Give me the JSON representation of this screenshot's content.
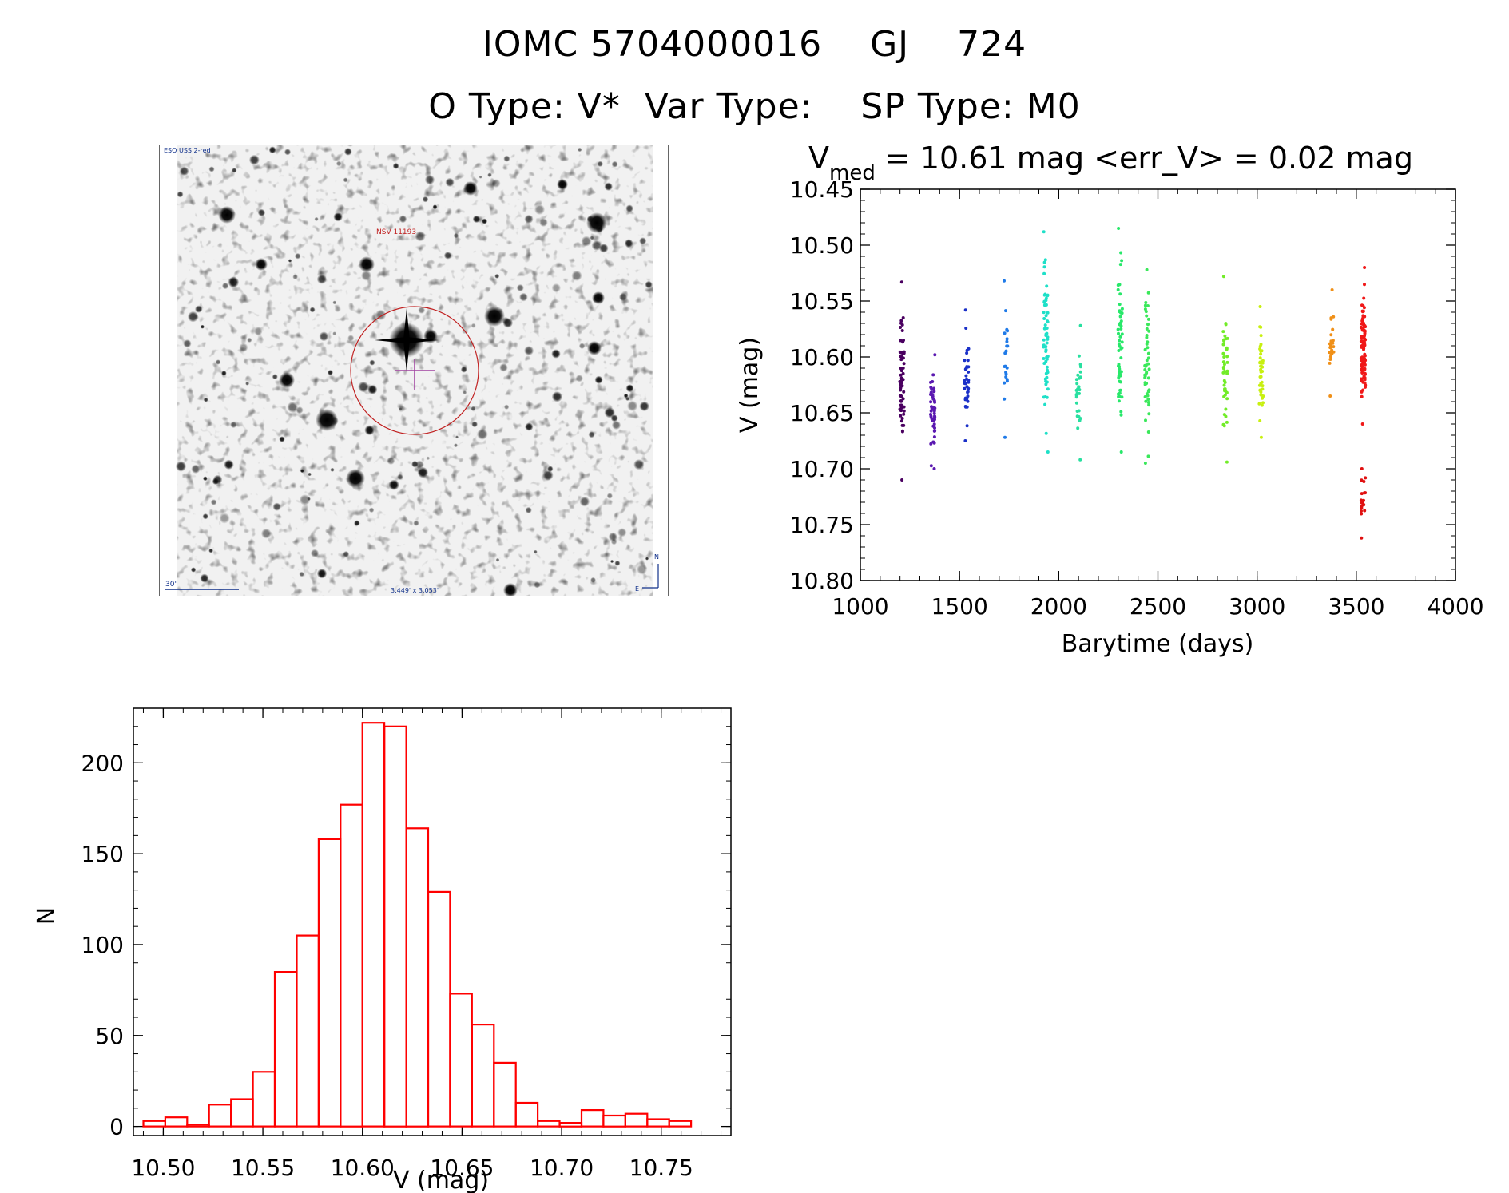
{
  "header": {
    "line1": "IOMC 5704000016    GJ    724",
    "line2": "O Type: V*  Var Type:    SP Type: M0"
  },
  "thumbnail": {
    "survey_label": "ESO USS 2-red",
    "target_label": "NSV 11193",
    "scale_label": "30\"",
    "fov_label": "3.449' x 3.053'",
    "north_label": "N",
    "east_label": "E"
  },
  "chart_data": [
    {
      "type": "scatter",
      "title": "V_med = 10.61 mag <err_V> = 0.02 mag",
      "title_parts": {
        "v": "V",
        "sub": "med",
        "rest": " = 10.61 mag <err_V> = 0.02 mag"
      },
      "xlabel": "Barytime (days)",
      "ylabel": "V (mag)",
      "xlim": [
        1000,
        4000
      ],
      "ylim": [
        10.8,
        10.45
      ],
      "xticks": [
        "1000",
        "1500",
        "2000",
        "2500",
        "3000",
        "3500",
        "4000"
      ],
      "yticks": [
        "10.45",
        "10.50",
        "10.55",
        "10.60",
        "10.65",
        "10.70",
        "10.75",
        "10.80"
      ],
      "groups": [
        {
          "x": 1210,
          "ymin": 10.533,
          "ymax": 10.71,
          "center": 10.61,
          "n": 60,
          "color": "#4a0060"
        },
        {
          "x": 1365,
          "ymin": 10.598,
          "ymax": 10.7,
          "center": 10.64,
          "n": 45,
          "color": "#5a18b0"
        },
        {
          "x": 1535,
          "ymin": 10.558,
          "ymax": 10.675,
          "center": 10.6,
          "n": 35,
          "color": "#1a30c8"
        },
        {
          "x": 1735,
          "ymin": 10.532,
          "ymax": 10.672,
          "center": 10.6,
          "n": 22,
          "color": "#1f7ae8"
        },
        {
          "x": 1935,
          "ymin": 10.488,
          "ymax": 10.685,
          "center": 10.61,
          "n": 60,
          "color": "#1ee0c8"
        },
        {
          "x": 2100,
          "ymin": 10.572,
          "ymax": 10.692,
          "center": 10.62,
          "n": 30,
          "color": "#28e0a0"
        },
        {
          "x": 2310,
          "ymin": 10.485,
          "ymax": 10.685,
          "center": 10.59,
          "n": 60,
          "color": "#28e86a"
        },
        {
          "x": 2445,
          "ymin": 10.522,
          "ymax": 10.695,
          "center": 10.62,
          "n": 50,
          "color": "#3ae85a"
        },
        {
          "x": 2840,
          "ymin": 10.528,
          "ymax": 10.694,
          "center": 10.62,
          "n": 45,
          "color": "#72ec28"
        },
        {
          "x": 3020,
          "ymin": 10.555,
          "ymax": 10.672,
          "center": 10.61,
          "n": 40,
          "color": "#c8f010"
        },
        {
          "x": 3375,
          "ymin": 10.54,
          "ymax": 10.635,
          "center": 10.6,
          "n": 25,
          "color": "#f09018"
        },
        {
          "x": 3535,
          "ymin": 10.52,
          "ymax": 10.66,
          "center": 10.605,
          "n": 100,
          "color": "#f01818"
        },
        {
          "x": 3535,
          "ymin": 10.7,
          "ymax": 10.762,
          "center": 10.73,
          "n": 18,
          "color": "#e01010"
        }
      ]
    },
    {
      "type": "bar",
      "title": "",
      "xlabel": "V (mag)",
      "ylabel": "N",
      "xlim": [
        10.485,
        10.785
      ],
      "ylim": [
        -5,
        230
      ],
      "xticks": [
        "10.50",
        "10.55",
        "10.60",
        "10.65",
        "10.70",
        "10.75"
      ],
      "yticks": [
        "0",
        "50",
        "100",
        "150",
        "200"
      ],
      "bin_width": 0.011,
      "bin_start": 10.49,
      "values": [
        3,
        5,
        1,
        12,
        15,
        30,
        85,
        105,
        158,
        177,
        222,
        220,
        164,
        129,
        73,
        56,
        35,
        13,
        3,
        2,
        9,
        6,
        7,
        4,
        3
      ],
      "color": "#ff0000"
    }
  ]
}
